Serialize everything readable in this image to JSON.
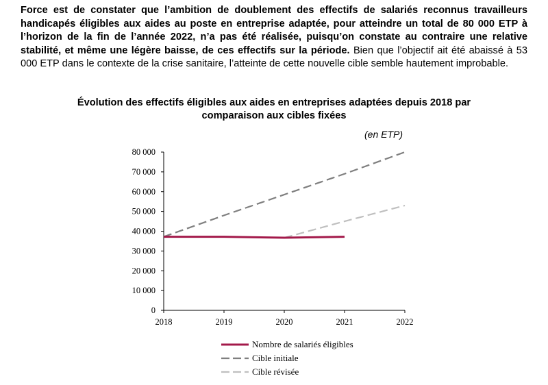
{
  "paragraph": {
    "bold": "Force est de constater que l’ambition de doublement des effectifs de salariés reconnus travailleurs handicapés éligibles aux aides au poste en entreprise adaptée, pour atteindre un total de 80 000 ETP à l’horizon de la fin de l’année 2022, n’a pas été réalisée, puisqu’on constate au contraire une relative stabilité, et même une légère baisse, de ces effectifs sur la période.",
    "normal": " Bien que l’objectif ait été abaissé à 53 000 ETP dans le contexte de la crise sanitaire, l’atteinte de cette nouvelle cible semble hautement improbable."
  },
  "chart_data": {
    "type": "line",
    "title_line1": "Évolution des effectifs éligibles aux aides en entreprises adaptées depuis 2018 par",
    "title_line2": "comparaison aux cibles fixées",
    "unit_label": "(en ETP)",
    "x": [
      "2018",
      "2019",
      "2020",
      "2021",
      "2022"
    ],
    "ylim": [
      0,
      80000
    ],
    "y_ticks": [
      "0",
      "10 000",
      "20 000",
      "30 000",
      "40 000",
      "50 000",
      "60 000",
      "70 000",
      "80 000"
    ],
    "series": [
      {
        "name": "Nombre de salariés éligibles",
        "color": "#a3194a",
        "style": "solid",
        "x": [
          "2018",
          "2019",
          "2020",
          "2021"
        ],
        "values": [
          37200,
          37200,
          36700,
          37200
        ]
      },
      {
        "name": "Cible initiale",
        "color": "#7f7f7f",
        "style": "dashed",
        "x": [
          "2018",
          "2019",
          "2020",
          "2021",
          "2022"
        ],
        "values": [
          37200,
          48000,
          58500,
          69000,
          80000
        ]
      },
      {
        "name": "Cible révisée",
        "color": "#bfbfbf",
        "style": "dashed",
        "x": [
          "2020",
          "2021",
          "2022"
        ],
        "values": [
          36700,
          45000,
          53000
        ]
      }
    ],
    "legend_position": "bottom"
  }
}
